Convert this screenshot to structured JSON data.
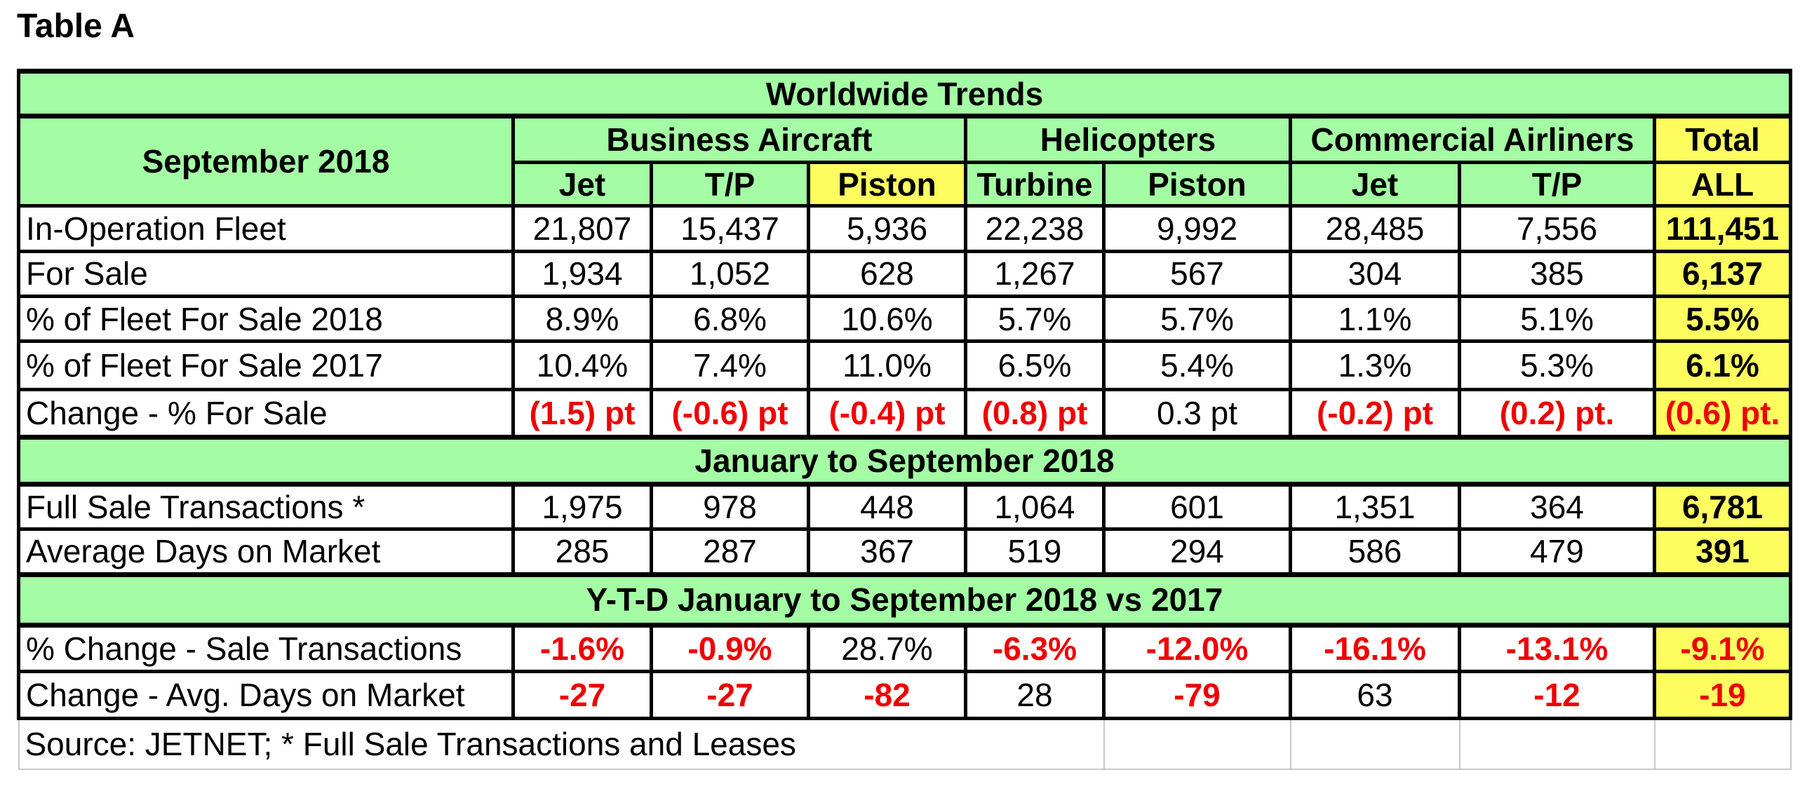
{
  "caption": "Table A",
  "banner_1": "Worldwide Trends",
  "period_label": "September 2018",
  "groups": {
    "business": "Business Aircraft",
    "helicopters": "Helicopters",
    "commercial": "Commercial Airliners",
    "total": "Total"
  },
  "columns": [
    "Jet",
    "T/P",
    "Piston",
    "Turbine",
    "Piston",
    "Jet",
    "T/P",
    "ALL"
  ],
  "section_1_rows": [
    {
      "label": "In-Operation Fleet",
      "values": [
        "21,807",
        "15,437",
        "5,936",
        "22,238",
        "9,992",
        "28,485",
        "7,556",
        "111,451"
      ]
    },
    {
      "label": "For Sale",
      "values": [
        "1,934",
        "1,052",
        "628",
        "1,267",
        "567",
        "304",
        "385",
        "6,137"
      ]
    },
    {
      "label": "% of Fleet For Sale 2018",
      "values": [
        "8.9%",
        "6.8%",
        "10.6%",
        "5.7%",
        "5.7%",
        "1.1%",
        "5.1%",
        "5.5%"
      ]
    },
    {
      "label": "% of Fleet For Sale 2017",
      "values": [
        "10.4%",
        "7.4%",
        "11.0%",
        "6.5%",
        "5.4%",
        "1.3%",
        "5.3%",
        "6.1%"
      ]
    },
    {
      "label": "Change - % For Sale",
      "values": [
        "(1.5) pt",
        "(-0.6) pt",
        "(-0.4) pt",
        "(0.8) pt",
        "0.3 pt",
        "(-0.2) pt",
        "(0.2) pt.",
        "(0.6) pt."
      ]
    }
  ],
  "banner_2": "January to September 2018",
  "section_2_rows": [
    {
      "label": "Full Sale Transactions *",
      "values": [
        "1,975",
        "978",
        "448",
        "1,064",
        "601",
        "1,351",
        "364",
        "6,781"
      ]
    },
    {
      "label": "Average Days on Market",
      "values": [
        "285",
        "287",
        "367",
        "519",
        "294",
        "586",
        "479",
        "391"
      ]
    }
  ],
  "banner_3": "Y-T-D January to September 2018 vs 2017",
  "section_3_rows": [
    {
      "label": "% Change  - Sale Transactions",
      "values": [
        "-1.6%",
        "-0.9%",
        "28.7%",
        "-6.3%",
        "-12.0%",
        "-16.1%",
        "-13.1%",
        "-9.1%"
      ]
    },
    {
      "label": "Change -  Avg. Days on Market",
      "values": [
        "-27",
        "-27",
        "-82",
        "28",
        "-79",
        "63",
        "-12",
        "-19"
      ]
    }
  ],
  "source_note": "Source: JETNET; * Full Sale Transactions and Leases",
  "colors": {
    "green": "#a4fca4",
    "yellow": "#fdfd60",
    "red": "#ee0000"
  }
}
